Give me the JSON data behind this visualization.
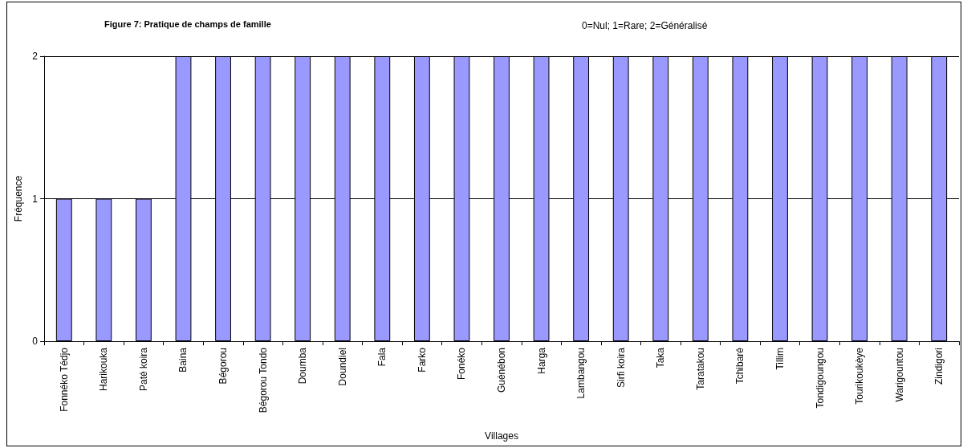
{
  "chart_data": {
    "type": "bar",
    "title": "Figure 7: Pratique de champs de famille",
    "annotations": [
      "0=Nul; 1=Rare; 2=Généralisé"
    ],
    "xlabel": "Villages",
    "ylabel": "Fréquence",
    "categories": [
      "Fonnéko Tédjo",
      "Harikouka",
      "Paté koira",
      "Baina",
      "Bégorou",
      "Bégorou Tondo",
      "Doumba",
      "Doundiel",
      "Fala",
      "Farko",
      "Fonéko",
      "Guénébon",
      "Harga",
      "Lambangou",
      "Sirfi koira",
      "Taka",
      "Taratakou",
      "Tchibaré",
      "Tillim",
      "Tondigoungou",
      "Tourikoukèye",
      "Warigountou",
      "Zindigori"
    ],
    "values": [
      1,
      1,
      1,
      2,
      2,
      2,
      2,
      2,
      2,
      2,
      2,
      2,
      2,
      2,
      2,
      2,
      2,
      2,
      2,
      2,
      2,
      2,
      2
    ],
    "color": "#9999ff",
    "ylim": [
      0,
      2
    ],
    "yticks": [
      0,
      1,
      2
    ],
    "grid": "y"
  }
}
